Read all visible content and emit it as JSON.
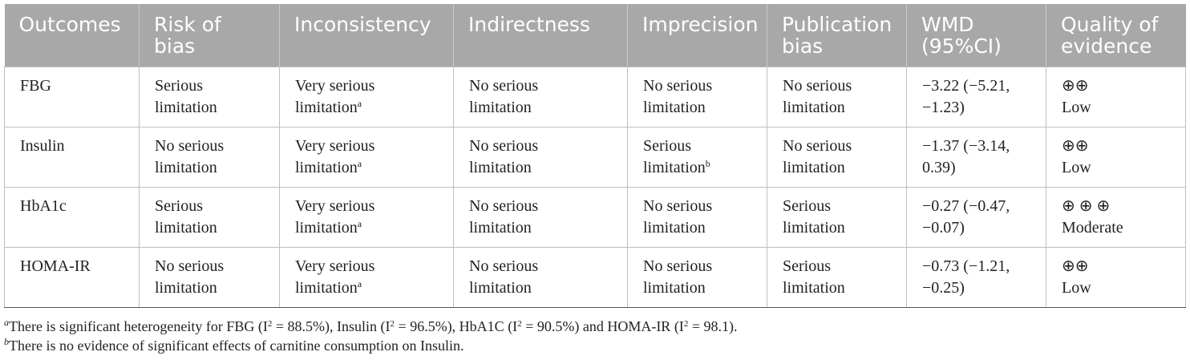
{
  "table": {
    "headers": [
      [
        "Outcomes"
      ],
      [
        "Risk of",
        "bias"
      ],
      [
        "Inconsistency"
      ],
      [
        "Indirectness"
      ],
      [
        "Imprecision"
      ],
      [
        "Publication",
        "bias"
      ],
      [
        "WMD",
        "(95%CI)"
      ],
      [
        "Quality of",
        "evidence"
      ]
    ],
    "rows": [
      {
        "outcome": "FBG",
        "risk": [
          "Serious",
          "limitation"
        ],
        "inconsistency": [
          "Very serious",
          "limitation",
          "a"
        ],
        "indirectness": [
          "No serious",
          "limitation"
        ],
        "imprecision": [
          "No serious",
          "limitation",
          ""
        ],
        "publication": [
          "No serious",
          "limitation"
        ],
        "wmd": [
          "−3.22 (−5.21,",
          "−1.23)"
        ],
        "quality": [
          "⊕⊕",
          "Low"
        ]
      },
      {
        "outcome": "Insulin",
        "risk": [
          "No serious",
          "limitation"
        ],
        "inconsistency": [
          "Very serious",
          "limitation",
          "a"
        ],
        "indirectness": [
          "No serious",
          "limitation"
        ],
        "imprecision": [
          "Serious",
          "limitation",
          "b"
        ],
        "publication": [
          "No serious",
          "limitation"
        ],
        "wmd": [
          "−1.37 (−3.14,",
          "0.39)"
        ],
        "quality": [
          "⊕⊕",
          "Low"
        ]
      },
      {
        "outcome": "HbA1c",
        "risk": [
          "Serious",
          "limitation"
        ],
        "inconsistency": [
          "Very serious",
          "limitation",
          "a"
        ],
        "indirectness": [
          "No serious",
          "limitation"
        ],
        "imprecision": [
          "No serious",
          "limitation",
          ""
        ],
        "publication": [
          "Serious",
          "limitation"
        ],
        "wmd": [
          "−0.27 (−0.47,",
          "−0.07)"
        ],
        "quality": [
          "⊕ ⊕ ⊕",
          "Moderate"
        ]
      },
      {
        "outcome": "HOMA-IR",
        "risk": [
          "No serious",
          "limitation"
        ],
        "inconsistency": [
          "Very serious",
          "limitation",
          "a"
        ],
        "indirectness": [
          "No serious",
          "limitation"
        ],
        "imprecision": [
          "No serious",
          "limitation",
          ""
        ],
        "publication": [
          "Serious",
          "limitation"
        ],
        "wmd": [
          "−0.73 (−1.21,",
          "−0.25)"
        ],
        "quality": [
          "⊕⊕",
          "Low"
        ]
      }
    ]
  },
  "footnotes": {
    "a": {
      "marker": "a",
      "parts": [
        "There is significant heterogeneity for FBG (I",
        "2",
        " = 88.5%), Insulin (I",
        "2",
        " = 96.5%), HbA1C (I",
        "2",
        " = 90.5%) and HOMA-IR (I",
        "2",
        " = 98.1)."
      ]
    },
    "b": {
      "marker": "b",
      "text": "There is no evidence of significant effects of carnitine consumption on Insulin."
    }
  },
  "colors": {
    "header_bg": "#a8a8a8",
    "header_text": "#ffffff",
    "grid": "#bfbfbf"
  }
}
